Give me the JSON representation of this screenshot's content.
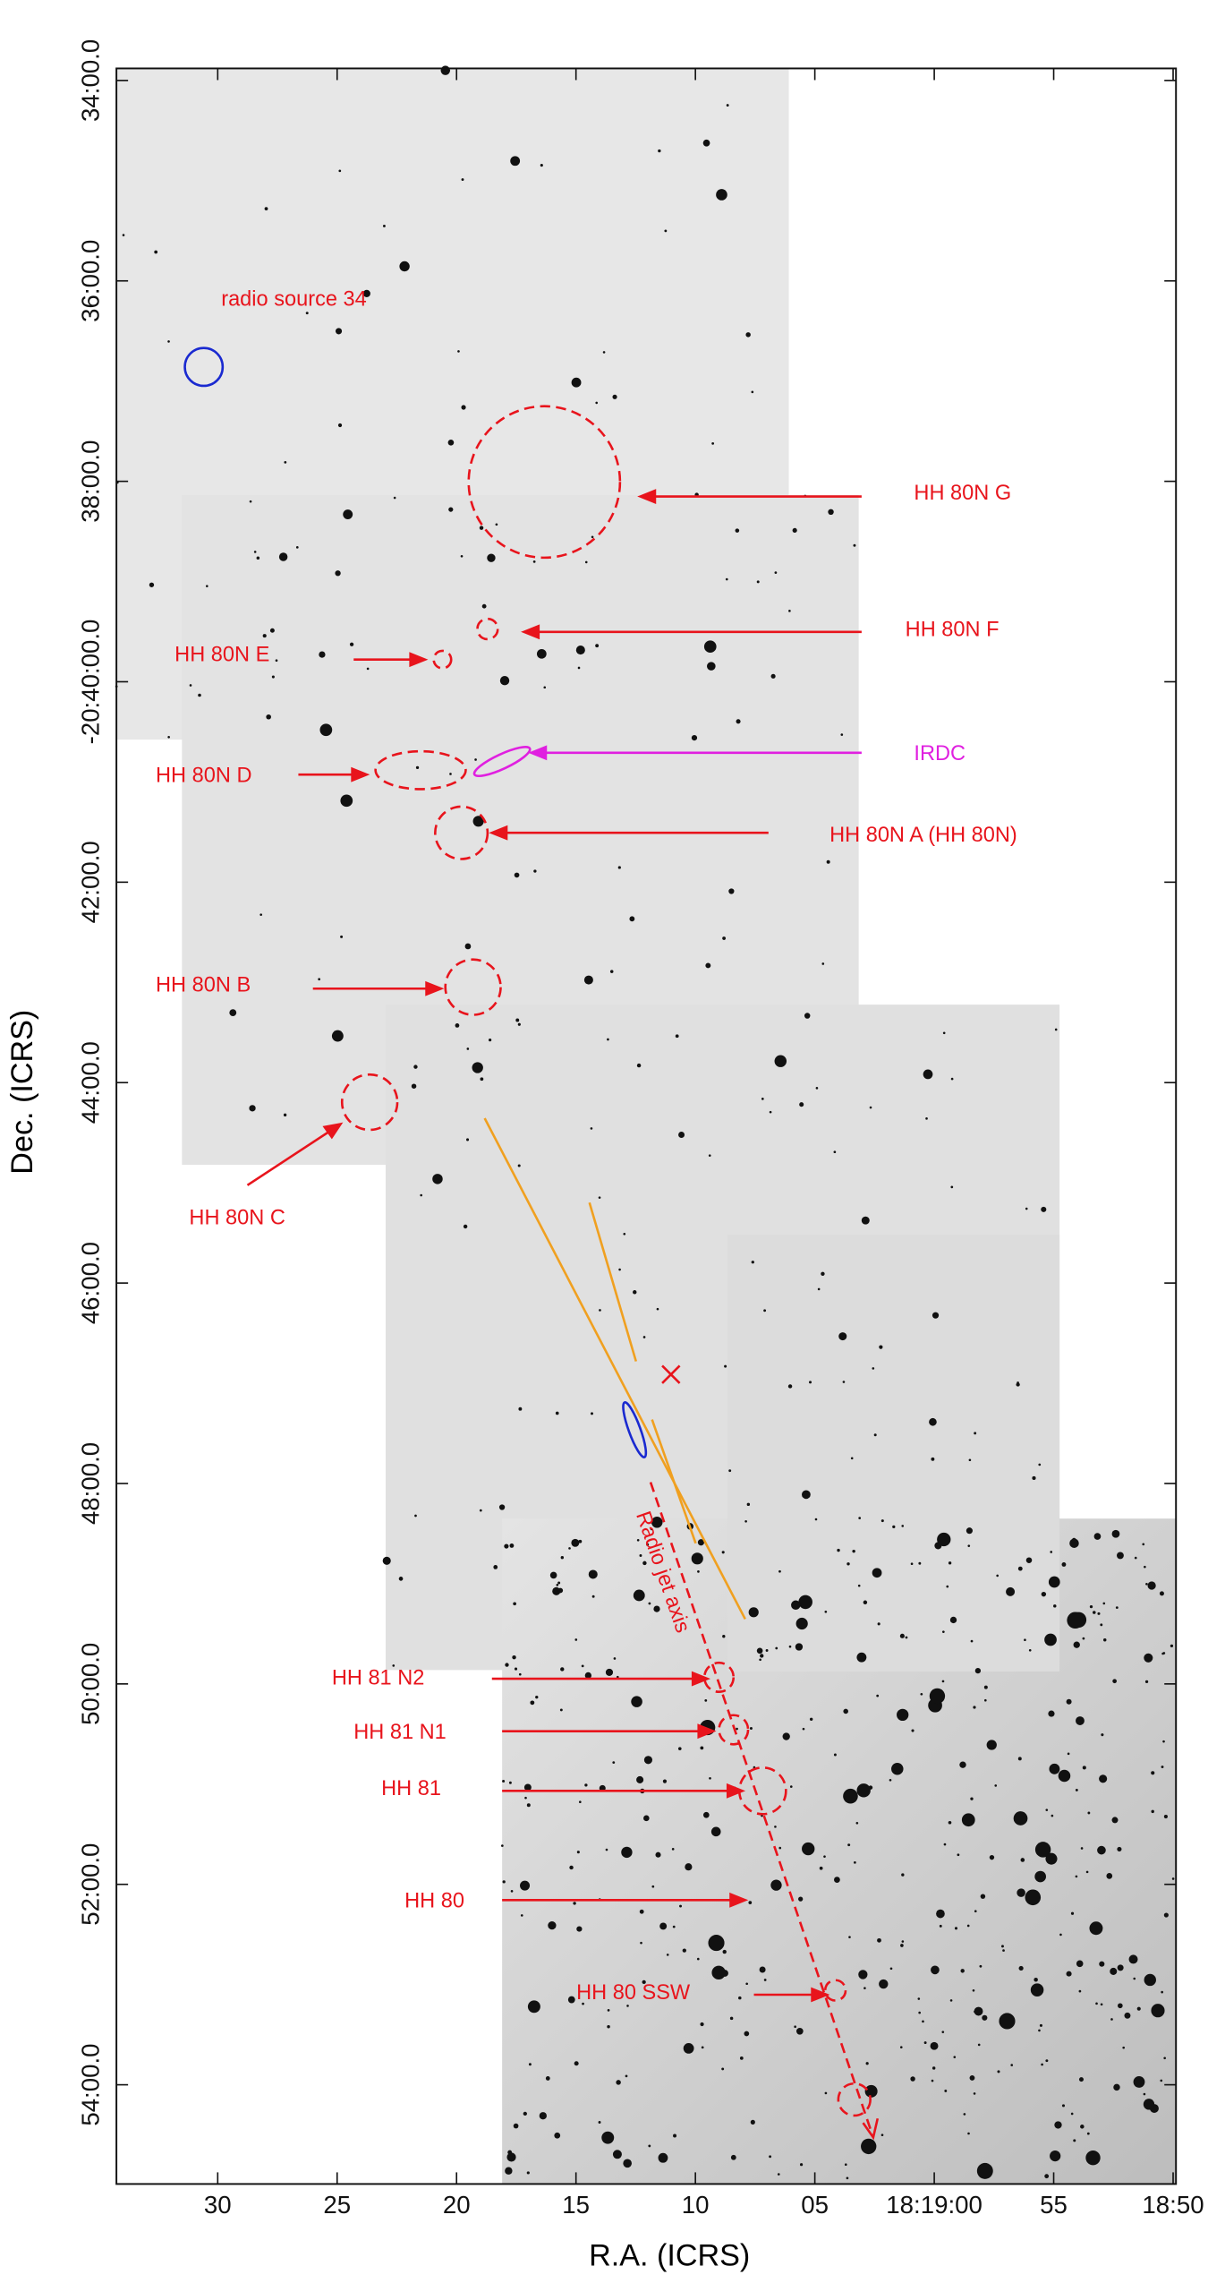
{
  "chart_data": {
    "type": "image",
    "xlabel": "R.A. (ICRS)",
    "ylabel": "Dec. (ICRS)",
    "xlim": [
      94.24,
      49.88
    ],
    "ylim": [
      33.88,
      54.99
    ],
    "xticks": [
      {
        "value": 90,
        "label": "30"
      },
      {
        "value": 85,
        "label": "25"
      },
      {
        "value": 80,
        "label": "20"
      },
      {
        "value": 75,
        "label": "15"
      },
      {
        "value": 70,
        "label": "10"
      },
      {
        "value": 65,
        "label": "05"
      },
      {
        "value": 60,
        "label": "18:19:00"
      },
      {
        "value": 55,
        "label": "55"
      },
      {
        "value": 50,
        "label": "18:50"
      }
    ],
    "yticks": [
      {
        "value": 34,
        "label": "34:00.0"
      },
      {
        "value": 36,
        "label": "36:00.0"
      },
      {
        "value": 38,
        "label": "38:00.0"
      },
      {
        "value": 40,
        "label": "-20:40:00.0"
      },
      {
        "value": 42,
        "label": "42:00.0"
      },
      {
        "value": 44,
        "label": "44:00.0"
      },
      {
        "value": 46,
        "label": "46:00.0"
      },
      {
        "value": 48,
        "label": "48:00.0"
      },
      {
        "value": 50,
        "label": "50:00.0"
      },
      {
        "value": 52,
        "label": "52:00.0"
      },
      {
        "value": 54,
        "label": "54:00.0"
      }
    ],
    "annotations": [
      "radio source 34",
      "HH 80N G",
      "HH 80N F",
      "HH 80N E",
      "IRDC",
      "HH 80N D",
      "HH 80N A (HH 80N)",
      "HH 80N B",
      "HH 80N C",
      "HH 81 N2",
      "HH 81 N1",
      "HH 81",
      "HH 80",
      "HH 80 SSW",
      "Radio jet axis"
    ]
  }
}
